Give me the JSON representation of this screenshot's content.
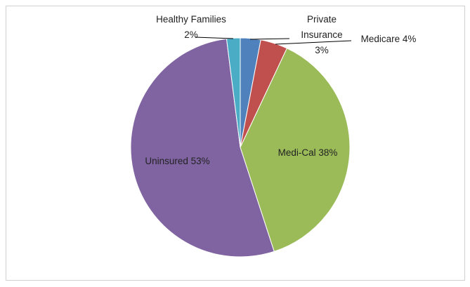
{
  "chart_data": {
    "type": "pie",
    "categories": [
      "Private Insurance",
      "Medicare",
      "Medi-Cal",
      "Uninsured",
      "Healthy Families"
    ],
    "values": [
      3,
      4,
      38,
      53,
      2
    ],
    "value_labels": [
      "3%",
      "4%",
      "38%",
      "53%",
      "2%"
    ],
    "colors": [
      "#4f81bd",
      "#c0504d",
      "#9bbb59",
      "#8064a2",
      "#4bacc6"
    ]
  }
}
